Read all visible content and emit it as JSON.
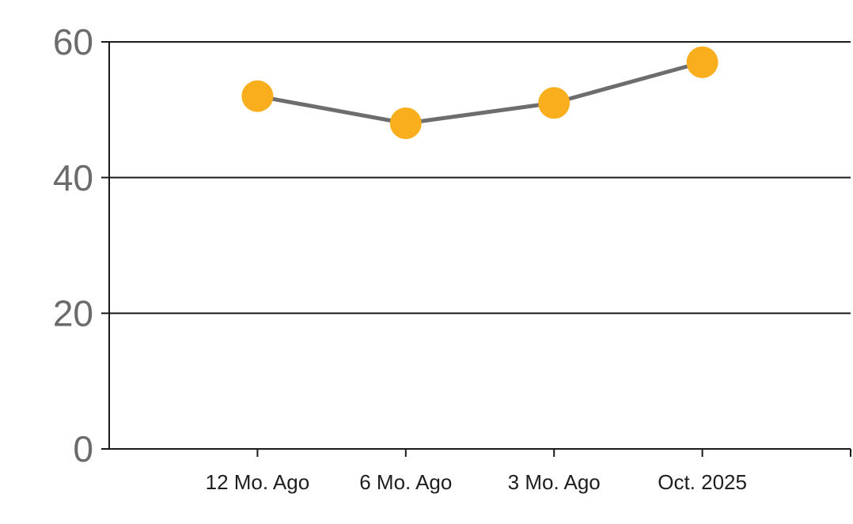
{
  "chart_data": {
    "type": "line",
    "categories": [
      "12 Mo. Ago",
      "6 Mo. Ago",
      "3 Mo. Ago",
      "Oct. 2025"
    ],
    "series": [
      {
        "name": "trend",
        "values": [
          52,
          48,
          51,
          57
        ]
      }
    ],
    "title": "",
    "xlabel": "",
    "ylabel": "",
    "ylim": [
      0,
      60
    ],
    "yticks": [
      0,
      20,
      40,
      60
    ],
    "grid": true,
    "legend": false,
    "colors": {
      "marker": "#F9AE1E",
      "line": "#6D6D6D",
      "axis": "#1A1A1A",
      "ytick_label": "#6B6B6B",
      "xtick_label": "#1F1F1F",
      "background": "#FFFFFF"
    }
  }
}
